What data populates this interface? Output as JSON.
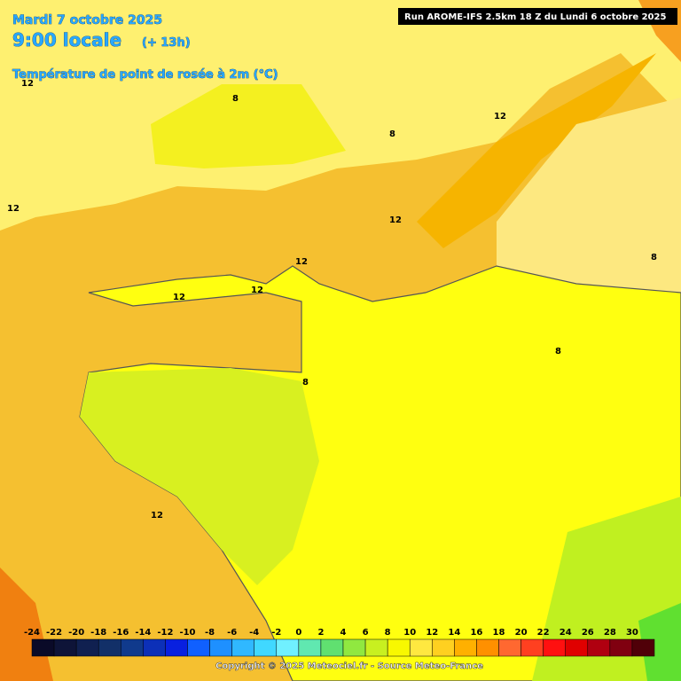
{
  "header": {
    "date": "Mardi 7 octobre 2025",
    "time": "9:00 locale",
    "lead": "(+ 13h)",
    "parameter": "Température de point de rosée à 2m (°C)",
    "run": "Run AROME-IFS 2.5km 18 Z du Lundi 6 octobre 2025"
  },
  "contour_labels": [
    "12",
    "12",
    "12",
    "8",
    "12",
    "12",
    "12",
    "12",
    "8",
    "8",
    "12",
    "8",
    "8"
  ],
  "legend": {
    "ticks": [
      -24,
      -22,
      -20,
      -18,
      -16,
      -14,
      -12,
      -10,
      -8,
      -6,
      -4,
      -2,
      0,
      2,
      4,
      6,
      8,
      10,
      12,
      14,
      16,
      18,
      20,
      22,
      24,
      26,
      28,
      30
    ],
    "colors": [
      "#0a0a28",
      "#0e1438",
      "#102050",
      "#123068",
      "#103a8c",
      "#0c30b8",
      "#0820e0",
      "#1060ff",
      "#1e90ff",
      "#30b8ff",
      "#40d8ff",
      "#70f0ff",
      "#60e8b0",
      "#60e070",
      "#90e840",
      "#c8f020",
      "#f8f800",
      "#ffe840",
      "#ffd020",
      "#ffb000",
      "#ff9000",
      "#ff6830",
      "#ff4020",
      "#ff1010",
      "#e00000",
      "#b00010",
      "#800010",
      "#500008"
    ]
  },
  "footer": {
    "copyright": "Copyright © 2025 Meteociel.fr - Source Meteo-France"
  }
}
